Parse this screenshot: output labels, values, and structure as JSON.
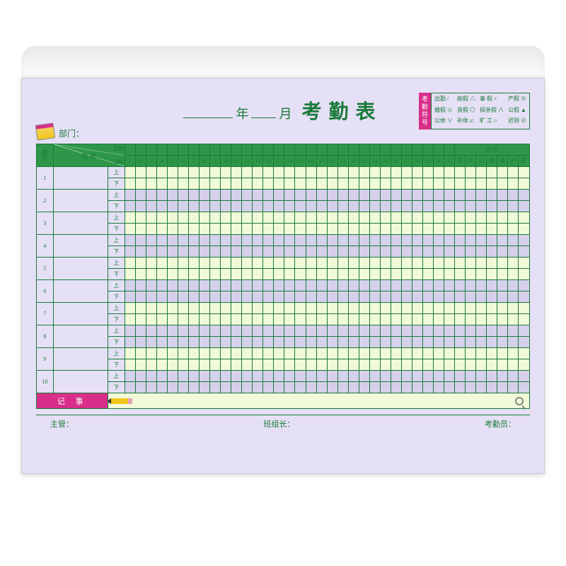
{
  "colors": {
    "sheet_bg": "#e5e0f5",
    "green_primary": "#2e9648",
    "green_dark": "#1a7a3a",
    "magenta": "#d82e8a",
    "row_cream": "#f0f9d8",
    "row_lilac": "#d6d0ed",
    "text_green": "#1a7a3a"
  },
  "title": {
    "year_label": "年",
    "month_label": "月",
    "main": "考勤表"
  },
  "dept_label": "部门：",
  "legend": {
    "label": "考勤符号",
    "items": [
      "出勤 /",
      "病假 △",
      "事 假 ×",
      "产假 ※",
      "婚假 ☆",
      "丧假 ◎",
      "探亲假 ∧",
      "公假 ▲",
      "公休 ∨",
      "补休 ⊏",
      "旷 工 ○",
      "迟到 ⊘"
    ]
  },
  "header": {
    "num": "编号",
    "diag_top": "星期",
    "diag_mid": "姓 名",
    "diag_bot": "日期",
    "total": "合 计",
    "days": [
      "1",
      "2",
      "3",
      "4",
      "5",
      "6",
      "7",
      "8",
      "9",
      "10",
      "11",
      "12",
      "13",
      "14",
      "15",
      "16",
      "17",
      "18",
      "19",
      "20",
      "21",
      "22",
      "23",
      "24",
      "25",
      "26",
      "27",
      "28",
      "29",
      "30",
      "31"
    ],
    "totals": [
      "迟",
      "早",
      "公",
      "病",
      "事",
      "产",
      "旷"
    ]
  },
  "shifts": {
    "am": "上",
    "pm": "下"
  },
  "rows": [
    "1",
    "2",
    "3",
    "4",
    "5",
    "6",
    "7",
    "8",
    "9",
    "10"
  ],
  "memo_label": "记 事",
  "footer": {
    "supervisor": "主管：",
    "team_leader": "班组长：",
    "attendance_clerk": "考勤员："
  }
}
